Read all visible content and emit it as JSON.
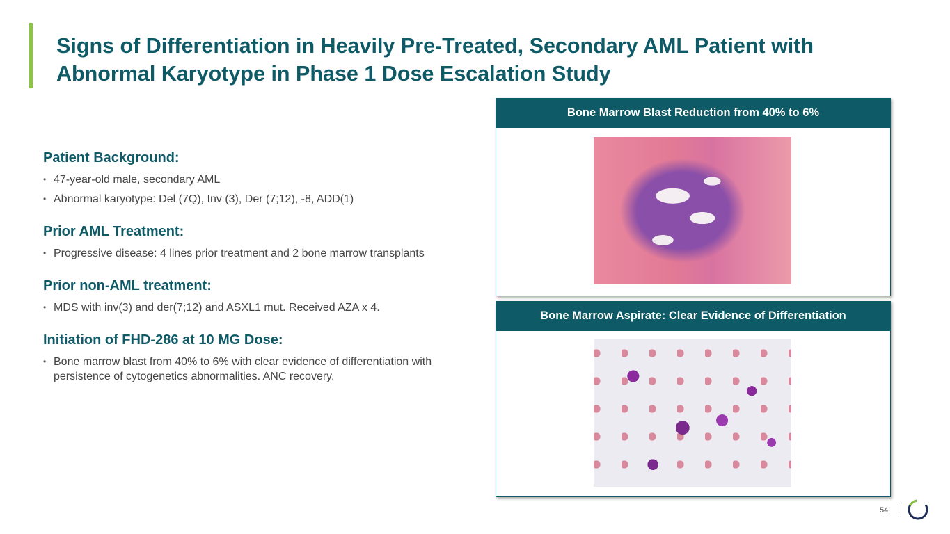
{
  "title": "Signs of Differentiation in Heavily Pre-Treated, Secondary AML Patient with Abnormal Karyotype in Phase 1 Dose Escalation Study",
  "sections": [
    {
      "heading": "Patient Background:",
      "bullets": [
        "47-year-old male, secondary AML",
        "Abnormal karyotype: Del (7Q), Inv (3), Der (7;12), -8, ADD(1)"
      ]
    },
    {
      "heading": "Prior AML Treatment:",
      "bullets": [
        "Progressive disease: 4 lines prior treatment and 2 bone marrow transplants"
      ]
    },
    {
      "heading": "Prior non-AML treatment:",
      "bullets": [
        "MDS with inv(3) and der(7;12) and ASXL1 mut. Received AZA x 4."
      ]
    },
    {
      "heading": "Initiation of FHD-286 at 10 MG Dose:",
      "bullets": [
        "Bone marrow blast from 40% to 6% with clear evidence of differentiation with persistence of cytogenetics abnormalities. ANC recovery."
      ]
    }
  ],
  "panels": [
    {
      "header": "Bone Marrow Blast Reduction from 40% to 6%"
    },
    {
      "header": "Bone Marrow Aspirate: Clear Evidence of Differentiation"
    }
  ],
  "page_number": "54",
  "colors": {
    "primary": "#0e5a66",
    "accent": "#8cc63f",
    "logo_ring": "#1f2f5a"
  }
}
